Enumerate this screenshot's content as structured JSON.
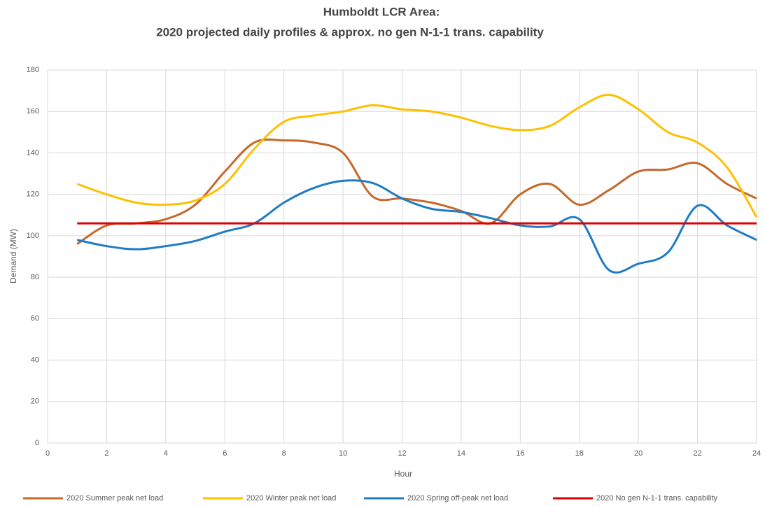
{
  "chart_data": {
    "type": "line",
    "title": "Humboldt LCR Area:",
    "subtitle": "2020 projected daily profiles & approx. no gen N-1-1 trans. capability",
    "x_label": "Hour",
    "y_label": "Demand (MW)",
    "x": [
      1,
      2,
      3,
      4,
      5,
      6,
      7,
      8,
      9,
      10,
      11,
      12,
      13,
      14,
      15,
      16,
      17,
      18,
      19,
      20,
      21,
      22,
      23,
      24
    ],
    "series": [
      {
        "name": "2020 Summer peak net load",
        "color": "#c5692c",
        "values": [
          96,
          105,
          106,
          108,
          115,
          131,
          145,
          146,
          145,
          140,
          119,
          118,
          116,
          112,
          106,
          120,
          125,
          115,
          122,
          131,
          132,
          135,
          125,
          118
        ]
      },
      {
        "name": "2020 Winter peak net load",
        "color": "#ffc000",
        "values": [
          125,
          120,
          116,
          115,
          117,
          125,
          142,
          155,
          158,
          160,
          163,
          161,
          160,
          157,
          153,
          151,
          153,
          162,
          168,
          161,
          150,
          145,
          133,
          109
        ]
      },
      {
        "name": "2020 Spring off-peak net load",
        "color": "#1f7bc4",
        "values": [
          98,
          95,
          93.5,
          95,
          97.5,
          102,
          106,
          116,
          123,
          126.5,
          125.5,
          118,
          113,
          111.5,
          108.5,
          105,
          104.5,
          108,
          83.5,
          86.5,
          92,
          114.5,
          105,
          98
        ]
      },
      {
        "name": "2020 No gen N-1-1 trans. capability",
        "color": "#e00000",
        "values": [
          106,
          106,
          106,
          106,
          106,
          106,
          106,
          106,
          106,
          106,
          106,
          106,
          106,
          106,
          106,
          106,
          106,
          106,
          106,
          106,
          106,
          106,
          106,
          106
        ]
      }
    ],
    "xlim": [
      0,
      24
    ],
    "xticks": [
      0,
      2,
      4,
      6,
      8,
      10,
      12,
      14,
      16,
      18,
      20,
      22,
      24
    ],
    "ylim": [
      0,
      180
    ],
    "yticks": [
      0,
      20,
      40,
      60,
      80,
      100,
      120,
      140,
      160,
      180
    ],
    "grid": true,
    "smooth": true,
    "legend": "bottom"
  }
}
